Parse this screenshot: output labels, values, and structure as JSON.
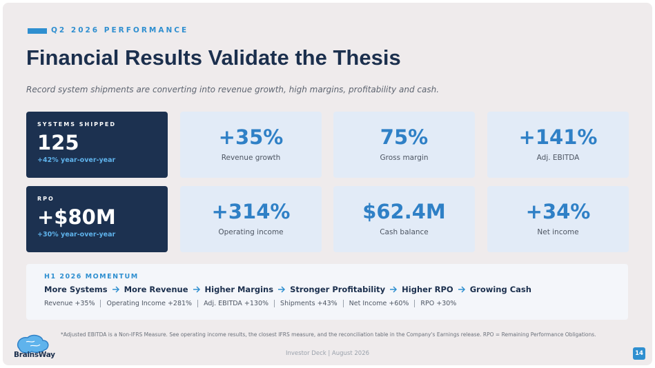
{
  "header": {
    "eyebrow": "Q2 2026 PERFORMANCE",
    "title": "Financial Results Validate the Thesis",
    "subtitle": "Record system shipments are converting into revenue growth, high margins, profitability and cash."
  },
  "highlights": [
    {
      "label": "SYSTEMS SHIPPED",
      "value": "125",
      "note": "+42% year-over-year"
    },
    {
      "label": "RPO",
      "value": "+$80M",
      "note": "+30% year-over-year"
    }
  ],
  "metrics": [
    {
      "value": "+35%",
      "label": "Revenue growth"
    },
    {
      "value": "75%",
      "label": "Gross margin"
    },
    {
      "value": "+141%",
      "label": "Adj. EBITDA"
    },
    {
      "value": "+314%",
      "label": "Operating income"
    },
    {
      "value": "$62.4M",
      "label": "Cash balance"
    },
    {
      "value": "+34%",
      "label": "Net income"
    }
  ],
  "momentum": {
    "heading": "H1 2026 MOMENTUM",
    "chain": [
      "More Systems",
      "More Revenue",
      "Higher Margins",
      "Stronger Profitability",
      "Higher RPO",
      "Growing Cash"
    ],
    "figures": [
      "Revenue +35%",
      "Operating Income +281%",
      "Adj. EBITDA +130%",
      "Shipments +43%",
      "Net Income +60%",
      "RPO +30%"
    ]
  },
  "footnote": "*Adjusted EBITDA is a Non-IFRS Measure. See operating income results, the closest IFRS measure, and the reconciliation table in the Company's Earnings release. RPO = Remaining Performance Obligations.",
  "footer": {
    "logo": "BrainsWay",
    "text": "Investor Deck | August 2026",
    "page": "14"
  }
}
